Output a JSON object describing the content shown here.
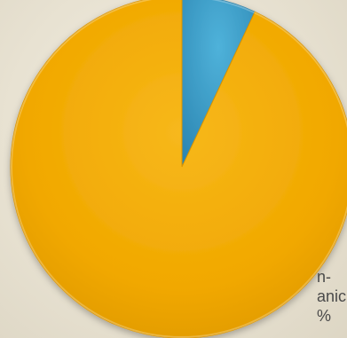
{
  "chart_data": {
    "type": "pie",
    "slices": [
      {
        "label": "",
        "value": 93,
        "color": "#f2a900"
      },
      {
        "label": "",
        "value": 7,
        "color": "#3a9ac4"
      }
    ],
    "start_angle_deg": 0,
    "visible_label_fragments": [
      "n-",
      "anic",
      "%"
    ]
  },
  "colors": {
    "background": "#ebe6d8",
    "slice_gold": "#f2a900",
    "slice_blue": "#3a9ac4"
  }
}
